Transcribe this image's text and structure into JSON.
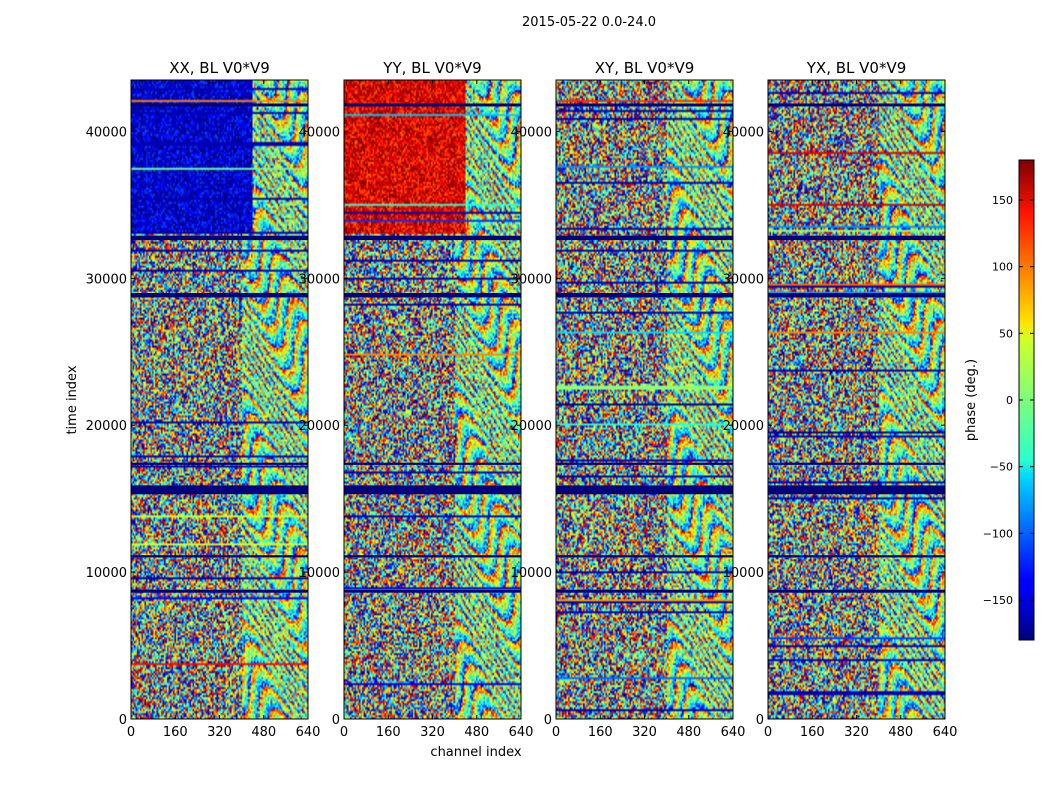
{
  "chart_data": {
    "type": "heatmap",
    "title": "2015-05-22 0.0-24.0",
    "xlabel": "channel index",
    "ylabel": "time index",
    "xlim": [
      0,
      640
    ],
    "ylim": [
      0,
      43500
    ],
    "x_ticks": [
      0,
      160,
      320,
      480,
      640
    ],
    "y_ticks": [
      0,
      10000,
      20000,
      30000,
      40000
    ],
    "x_tick_labels": [
      "0",
      "160",
      "320",
      "480",
      "640"
    ],
    "y_tick_labels": [
      "0",
      "10000",
      "20000",
      "30000",
      "40000"
    ],
    "panels": [
      {
        "name": "XX, BL V0*V9",
        "polarization": "XX"
      },
      {
        "name": "YY, BL V0*V9",
        "polarization": "YY"
      },
      {
        "name": "XY, BL V0*V9",
        "polarization": "XY"
      },
      {
        "name": "YX, BL V0*V9",
        "polarization": "YX"
      }
    ],
    "colorbar": {
      "label": "phase (deg.)",
      "range": [
        -180,
        180
      ],
      "ticks": [
        -150,
        -100,
        -50,
        0,
        50,
        100,
        150
      ],
      "tick_labels": [
        "−150",
        "−100",
        "−50",
        "0",
        "50",
        "100",
        "150"
      ],
      "colormap": "jet"
    },
    "flagged_time_bands": [
      [
        15300,
        15900
      ],
      [
        8600,
        8800
      ],
      [
        28700,
        29000
      ],
      [
        32600,
        32900
      ],
      [
        41700,
        41900
      ],
      [
        11000,
        11150
      ],
      [
        17300,
        17450
      ]
    ]
  }
}
